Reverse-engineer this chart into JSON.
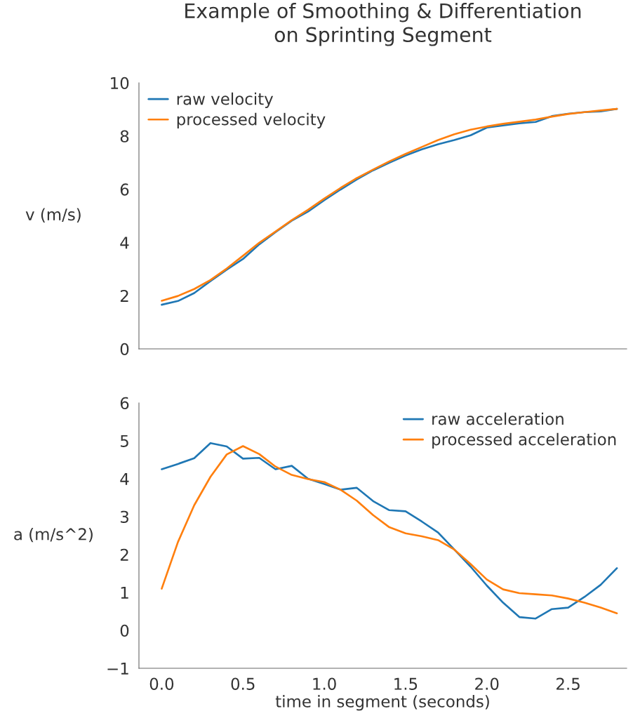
{
  "chart_data": [
    {
      "type": "line",
      "title": "Example of Smoothing & Differentiation\non Sprinting Segment",
      "ylabel": "v (m/s)",
      "x": [
        0.0,
        0.1,
        0.2,
        0.3,
        0.4,
        0.5,
        0.6,
        0.7,
        0.8,
        0.9,
        1.0,
        1.1,
        1.2,
        1.3,
        1.4,
        1.5,
        1.6,
        1.7,
        1.8,
        1.9,
        2.0,
        2.1,
        2.2,
        2.3,
        2.4,
        2.5,
        2.6,
        2.7,
        2.8
      ],
      "series": [
        {
          "name": "raw velocity",
          "color": "#1f77b4",
          "values": [
            1.66,
            1.8,
            2.1,
            2.55,
            2.98,
            3.38,
            3.93,
            4.39,
            4.82,
            5.16,
            5.59,
            5.99,
            6.37,
            6.71,
            7.0,
            7.27,
            7.5,
            7.69,
            7.85,
            8.03,
            8.32,
            8.4,
            8.48,
            8.53,
            8.75,
            8.84,
            8.9,
            8.93,
            9.02
          ]
        },
        {
          "name": "processed velocity",
          "color": "#ff7f0e",
          "values": [
            1.81,
            1.99,
            2.25,
            2.59,
            3.02,
            3.5,
            3.99,
            4.41,
            4.84,
            5.23,
            5.65,
            6.05,
            6.42,
            6.74,
            7.05,
            7.33,
            7.59,
            7.85,
            8.07,
            8.24,
            8.36,
            8.46,
            8.54,
            8.62,
            8.73,
            8.83,
            8.9,
            8.96,
            9.02
          ]
        }
      ],
      "xlim": [
        -0.14,
        2.86
      ],
      "ylim": [
        0,
        10
      ],
      "yticks": [
        0,
        2,
        4,
        6,
        8,
        10
      ],
      "tick_labels": "y",
      "legend": "top left"
    },
    {
      "type": "line",
      "xlabel": "time in segment (seconds)",
      "ylabel": "a (m/s^2)",
      "x": [
        0.0,
        0.1,
        0.2,
        0.3,
        0.4,
        0.5,
        0.6,
        0.7,
        0.8,
        0.9,
        1.0,
        1.1,
        1.2,
        1.3,
        1.4,
        1.5,
        1.6,
        1.7,
        1.8,
        1.9,
        2.0,
        2.1,
        2.2,
        2.3,
        2.4,
        2.5,
        2.6,
        2.7,
        2.8
      ],
      "series": [
        {
          "name": "raw acceleration",
          "color": "#1f77b4",
          "values": [
            4.25,
            4.39,
            4.54,
            4.94,
            4.85,
            4.53,
            4.55,
            4.25,
            4.34,
            4.0,
            3.86,
            3.71,
            3.76,
            3.41,
            3.17,
            3.14,
            2.87,
            2.58,
            2.13,
            1.68,
            1.18,
            0.73,
            0.35,
            0.31,
            0.56,
            0.6,
            0.88,
            1.2,
            1.64
          ]
        },
        {
          "name": "processed acceleration",
          "color": "#ff7f0e",
          "values": [
            1.1,
            2.33,
            3.3,
            4.05,
            4.64,
            4.86,
            4.65,
            4.32,
            4.1,
            3.99,
            3.91,
            3.71,
            3.42,
            3.04,
            2.72,
            2.56,
            2.48,
            2.38,
            2.13,
            1.75,
            1.34,
            1.08,
            0.98,
            0.95,
            0.92,
            0.84,
            0.73,
            0.6,
            0.45
          ]
        }
      ],
      "xlim": [
        -0.14,
        2.86
      ],
      "xticks": [
        {
          "value": 0,
          "label": "0.0"
        },
        0.5,
        {
          "value": 1,
          "label": "1.0"
        },
        1.5,
        {
          "value": 2,
          "label": "2.0"
        },
        2.5
      ],
      "ylim": [
        -1,
        6
      ],
      "yticks": [
        {
          "value": -1,
          "label": "−1"
        },
        0,
        1,
        2,
        3,
        4,
        5,
        6
      ],
      "legend": "top right"
    }
  ]
}
